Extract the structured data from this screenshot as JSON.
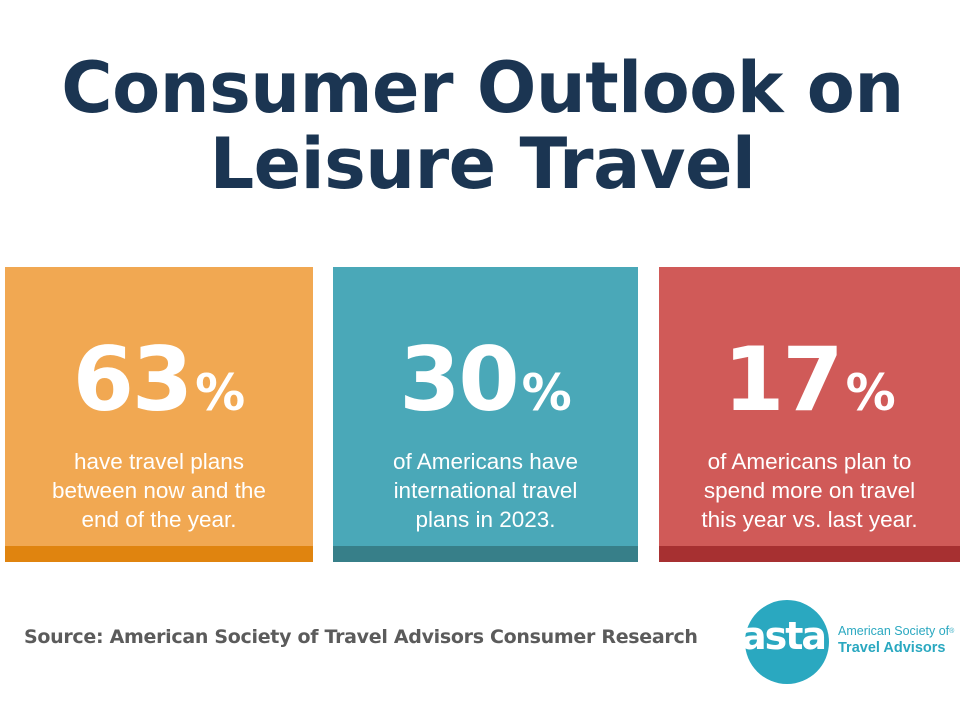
{
  "title": {
    "line1": "Consumer Outlook on",
    "line2": "Leisure Travel"
  },
  "cards": [
    {
      "value": "63",
      "unit": "%",
      "desc_lines": [
        "have travel plans",
        "between now and the",
        "end of the year."
      ],
      "color": "#f1a852",
      "bar_color": "#e0840f"
    },
    {
      "value": "30",
      "unit": "%",
      "desc_lines": [
        "of Americans have",
        "international travel",
        "plans in 2023."
      ],
      "color": "#4aa8b8",
      "bar_color": "#377f89"
    },
    {
      "value": "17",
      "unit": "%",
      "desc_lines": [
        "of Americans plan to",
        "spend more on travel",
        "this year vs. last year."
      ],
      "color": "#d05a58",
      "bar_color": "#a73031"
    }
  ],
  "source": "Source: American Society of Travel Advisors Consumer Research",
  "logo": {
    "word": "asta",
    "line1": "American Society of",
    "registered": "®",
    "line2": "Travel Advisors",
    "color": "#2aa8c0"
  },
  "colors": {
    "title": "#1b3552",
    "source": "#5b5b5b"
  }
}
